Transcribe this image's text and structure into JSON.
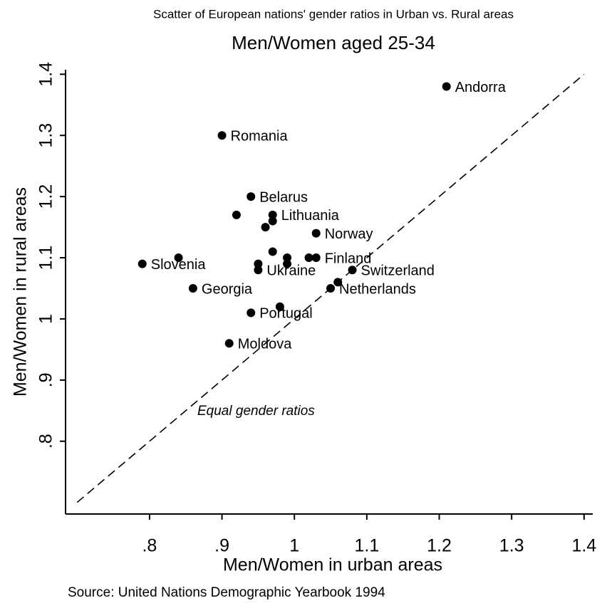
{
  "chart_data": {
    "type": "scatter",
    "supertitle": "Scatter of European nations' gender ratios in Urban vs. Rural areas",
    "title": "Men/Women aged 25-34",
    "x_label": "Men/Women in urban areas",
    "y_label": "Men/Women in rural areas",
    "source": "Source: United Nations Demographic Yearbook 1994",
    "color": "#000000",
    "x": [
      1.21,
      0.9,
      0.94,
      0.92,
      0.97,
      0.97,
      0.96,
      1.03,
      0.97,
      0.79,
      0.84,
      0.95,
      0.95,
      0.99,
      0.99,
      1.02,
      1.03,
      1.08,
      1.06,
      1.05,
      0.86,
      0.94,
      0.98,
      0.91
    ],
    "values": [
      1.38,
      1.3,
      1.2,
      1.17,
      1.17,
      1.16,
      1.15,
      1.14,
      1.11,
      1.09,
      1.1,
      1.09,
      1.08,
      1.1,
      1.09,
      1.1,
      1.1,
      1.08,
      1.06,
      1.05,
      1.05,
      1.01,
      1.02,
      0.96
    ],
    "labels": [
      "Andorra",
      "Romania",
      "Belarus",
      null,
      "Lithuania",
      null,
      null,
      "Norway",
      null,
      "Slovenia",
      null,
      null,
      "Ukraine",
      null,
      null,
      null,
      "Finland",
      "Switzerland",
      null,
      "Netherlands",
      "Georgia",
      "Portugal",
      null,
      "Moldova"
    ],
    "reference_line": {
      "label": "Equal gender ratios",
      "x": [
        0.7,
        1.4
      ]
    },
    "xlim": [
      0.684,
      1.41
    ],
    "ylim": [
      0.681,
      1.405
    ],
    "xticks": [
      {
        "value": 0.8,
        "label": ".8"
      },
      {
        "value": 0.9,
        "label": ".9"
      },
      1,
      1.1,
      1.2,
      1.3,
      1.4
    ],
    "yticks": [
      {
        "value": 0.8,
        "label": ".8"
      },
      {
        "value": 0.9,
        "label": ".9"
      },
      1,
      1.1,
      1.2,
      1.3,
      1.4
    ]
  }
}
